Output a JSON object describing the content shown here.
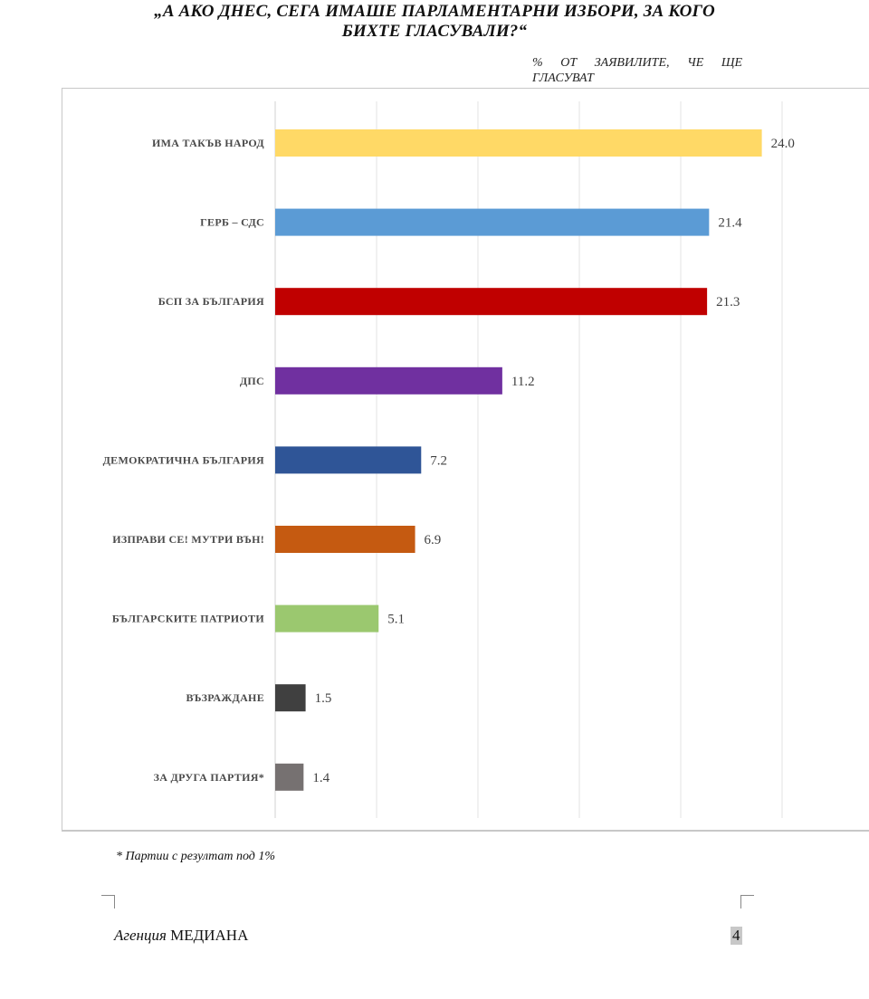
{
  "title_line1": "„А АКО ДНЕС, СЕГА ИМАШЕ ПАРЛАМЕНТАРНИ ИЗБОРИ, ЗА КОГО",
  "title_line2": "БИХТЕ ГЛАСУВАЛИ?“",
  "subtitle": "% ОТ ЗАЯВИЛИТЕ, ЧЕ ЩЕ ГЛАСУВАТ",
  "chart_data": {
    "type": "bar",
    "orientation": "horizontal",
    "categories": [
      "ИМА ТАКЪВ НАРОД",
      "ГЕРБ – СДС",
      "БСП ЗА БЪЛГАРИЯ",
      "ДПС",
      "ДЕМОКРАТИЧНА БЪЛГАРИЯ",
      "ИЗПРАВИ СЕ! МУТРИ ВЪН!",
      "БЪЛГАРСКИТЕ ПАТРИОТИ",
      "ВЪЗРАЖДАНЕ",
      "ЗА ДРУГА ПАРТИЯ*"
    ],
    "values": [
      24.0,
      21.4,
      21.3,
      11.2,
      7.2,
      6.9,
      5.1,
      1.5,
      1.4
    ],
    "value_labels": [
      "24.0",
      "21.4",
      "21.3",
      "11.2",
      "7.2",
      "6.9",
      "5.1",
      "1.5",
      "1.4"
    ],
    "colors": [
      "#FFD966",
      "#5B9BD5",
      "#C00000",
      "#7030A0",
      "#2F5597",
      "#C55A11",
      "#9BC86F",
      "#404040",
      "#767171"
    ],
    "xlim": [
      0,
      25
    ],
    "grid": true,
    "legend": "none"
  },
  "footnote": "* Партии с резултат под 1%",
  "footer": {
    "agency_prefix": "Агенция",
    "agency_name": "МЕДИАНА",
    "page_number": "4"
  }
}
